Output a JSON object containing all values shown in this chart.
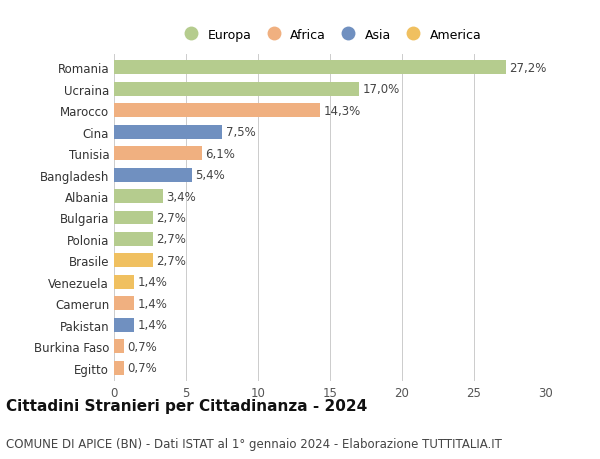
{
  "countries": [
    "Romania",
    "Ucraina",
    "Marocco",
    "Cina",
    "Tunisia",
    "Bangladesh",
    "Albania",
    "Bulgaria",
    "Polonia",
    "Brasile",
    "Venezuela",
    "Camerun",
    "Pakistan",
    "Burkina Faso",
    "Egitto"
  ],
  "values": [
    27.2,
    17.0,
    14.3,
    7.5,
    6.1,
    5.4,
    3.4,
    2.7,
    2.7,
    2.7,
    1.4,
    1.4,
    1.4,
    0.7,
    0.7
  ],
  "labels": [
    "27,2%",
    "17,0%",
    "14,3%",
    "7,5%",
    "6,1%",
    "5,4%",
    "3,4%",
    "2,7%",
    "2,7%",
    "2,7%",
    "1,4%",
    "1,4%",
    "1,4%",
    "0,7%",
    "0,7%"
  ],
  "continents": [
    "Europa",
    "Europa",
    "Africa",
    "Asia",
    "Africa",
    "Asia",
    "Europa",
    "Europa",
    "Europa",
    "America",
    "America",
    "Africa",
    "Asia",
    "Africa",
    "Africa"
  ],
  "continent_colors": {
    "Europa": "#b5cc8e",
    "Africa": "#f0b080",
    "Asia": "#7090c0",
    "America": "#f0c060"
  },
  "legend_order": [
    "Europa",
    "Africa",
    "Asia",
    "America"
  ],
  "title": "Cittadini Stranieri per Cittadinanza - 2024",
  "subtitle": "COMUNE DI APICE (BN) - Dati ISTAT al 1° gennaio 2024 - Elaborazione TUTTITALIA.IT",
  "xlim": [
    0,
    30
  ],
  "xticks": [
    0,
    5,
    10,
    15,
    20,
    25,
    30
  ],
  "background_color": "#ffffff",
  "grid_color": "#cccccc",
  "bar_height": 0.65,
  "title_fontsize": 11,
  "subtitle_fontsize": 8.5,
  "tick_fontsize": 8.5,
  "label_fontsize": 8.5
}
